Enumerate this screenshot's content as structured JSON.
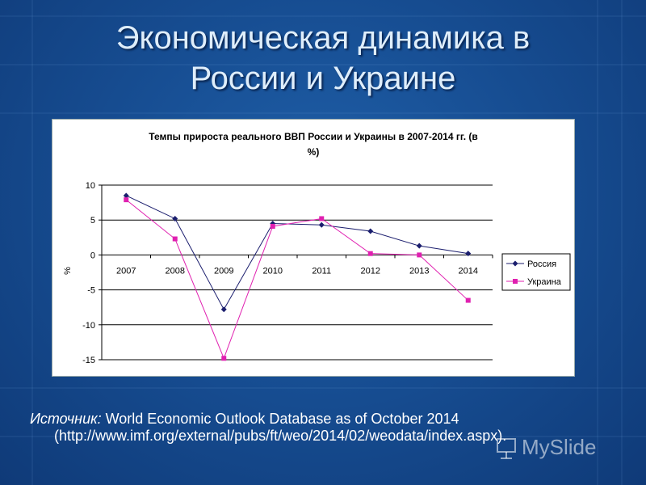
{
  "slide": {
    "title_line1": "Экономическая динамика в",
    "title_line2": "России и Украине"
  },
  "chart_data": {
    "type": "line",
    "title_line1": "Темпы прироста реального ВВП России и Украины в 2007-2014 гг. (в",
    "title_line2": "%)",
    "ylabel": "%",
    "xlabel": "",
    "ylim": [
      -15,
      10
    ],
    "yticks": [
      10,
      5,
      0,
      -5,
      -10,
      -15
    ],
    "categories": [
      "2007",
      "2008",
      "2009",
      "2010",
      "2011",
      "2012",
      "2013",
      "2014"
    ],
    "series": [
      {
        "name": "Россия",
        "color": "#1b1e6e",
        "marker": "diamond",
        "values": [
          8.5,
          5.2,
          -7.8,
          4.5,
          4.3,
          3.4,
          1.3,
          0.2
        ]
      },
      {
        "name": "Украина",
        "color": "#e020b0",
        "marker": "square",
        "values": [
          7.9,
          2.3,
          -14.8,
          4.1,
          5.2,
          0.2,
          0.0,
          -6.5
        ]
      }
    ],
    "grid": true,
    "legend_position": "right"
  },
  "source": {
    "label": "Источник:",
    "text": " World Economic Outlook Database as of October 2014",
    "url": "(http://www.imf.org/external/pubs/ft/weo/2014/02/weodata/index.aspx)."
  },
  "watermark": {
    "text": "MySlide",
    "icon": "presentation-board-icon"
  }
}
